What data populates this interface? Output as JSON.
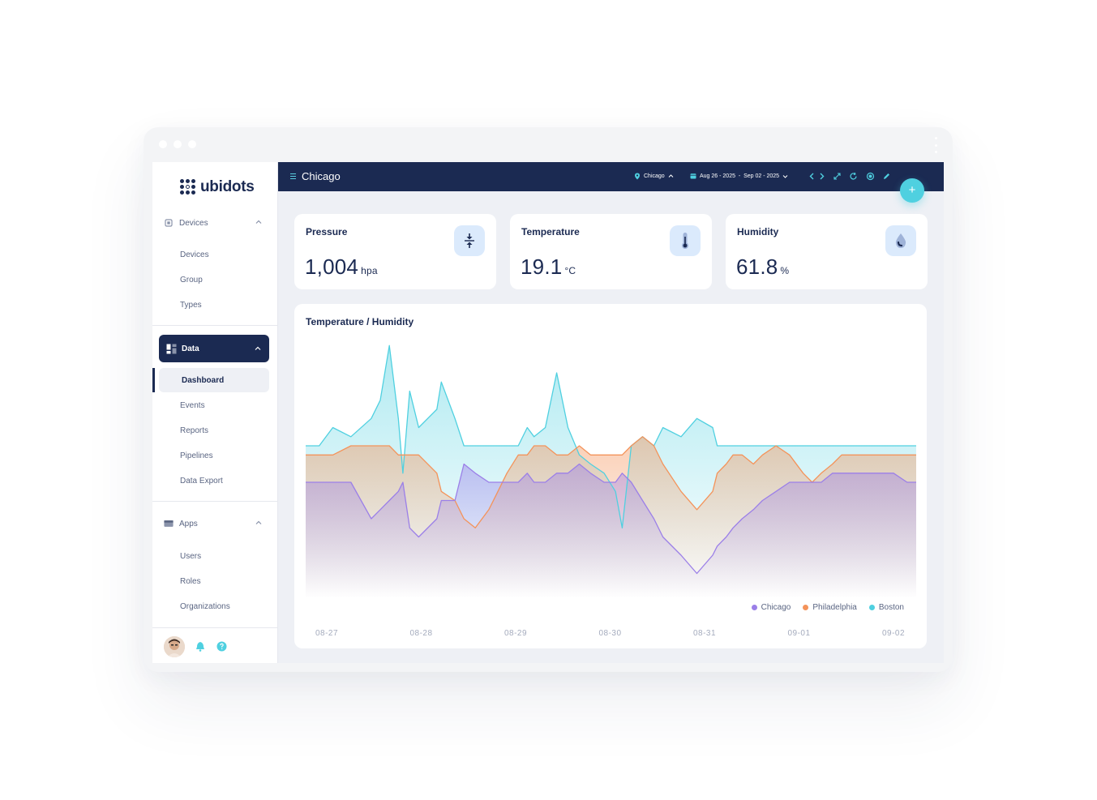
{
  "brand": {
    "name": "ubidots"
  },
  "sidebar": {
    "devices_section": {
      "label": "Devices",
      "items": [
        "Devices",
        "Group",
        "Types"
      ]
    },
    "data_section": {
      "label": "Data",
      "active": "Dashboard",
      "items": [
        "Events",
        "Reports",
        "Pipelines",
        "Data Export"
      ]
    },
    "apps_section": {
      "label": "Apps",
      "items": [
        "Users",
        "Roles",
        "Organizations"
      ]
    }
  },
  "topbar": {
    "title": "Chicago",
    "location": "Chicago",
    "date_range": "Aug 26 - 2025  -  Sep 02 - 2025",
    "fab": "+"
  },
  "kpis": [
    {
      "label": "Pressure",
      "value": "1,004",
      "unit": "hpa",
      "icon": "pressure-icon"
    },
    {
      "label": "Temperature",
      "value": "19.1",
      "unit": "°C",
      "icon": "thermometer-icon"
    },
    {
      "label": "Humidity",
      "value": "61.8",
      "unit": "%",
      "icon": "droplet-icon"
    }
  ],
  "colors": {
    "navy": "#1b2a52",
    "chicago": "#9b7fe8",
    "philadelphia": "#f4935a",
    "boston": "#4fd0e0"
  },
  "chart_data": {
    "type": "area",
    "title": "Temperature / Humidity",
    "xticks": [
      "08-27",
      "08-28",
      "08-29",
      "08-30",
      "08-31",
      "09-01",
      "09-02"
    ],
    "x": [
      0,
      0.3,
      0.6,
      1.0,
      1.45,
      1.65,
      1.85,
      2.05,
      2.15,
      2.3,
      2.5,
      2.9,
      3.0,
      3.3,
      3.5,
      3.75,
      4.05,
      4.25,
      4.45,
      4.7,
      4.9,
      5.05,
      5.3,
      5.55,
      5.8,
      6.05,
      6.3,
      6.6,
      6.85,
      7.0,
      7.2,
      7.45,
      7.7,
      7.9,
      8.3,
      8.65,
      9.0,
      9.1,
      9.3,
      9.45,
      9.65,
      9.9,
      10.1,
      10.4,
      10.7,
      11.0,
      11.2,
      11.4,
      11.65,
      11.85,
      12.3,
      12.7,
      13.0,
      13.3,
      13.5
    ],
    "series": [
      {
        "name": "Chicago",
        "values": [
          32,
          32,
          32,
          32,
          28,
          29,
          30,
          31,
          32,
          27,
          26,
          28,
          30,
          30,
          34,
          33,
          32,
          32,
          32,
          32,
          33,
          32,
          32,
          33,
          33,
          34,
          33,
          32,
          32,
          33,
          32,
          30,
          28,
          26,
          24,
          22,
          24,
          25,
          26,
          27,
          28,
          29,
          30,
          31,
          32,
          32,
          32,
          32,
          33,
          33,
          33,
          33,
          33,
          32,
          32
        ]
      },
      {
        "name": "Philadelphia",
        "values": [
          35,
          35,
          35,
          36,
          36,
          36,
          36,
          35,
          35,
          35,
          35,
          33,
          31,
          30,
          28,
          27,
          29,
          31,
          33,
          35,
          35,
          36,
          36,
          35,
          35,
          36,
          35,
          35,
          35,
          35,
          36,
          37,
          36,
          34,
          31,
          29,
          31,
          33,
          34,
          35,
          35,
          34,
          35,
          36,
          35,
          33,
          32,
          33,
          34,
          35,
          35,
          35,
          35,
          35,
          35
        ]
      },
      {
        "name": "Boston",
        "values": [
          36,
          36,
          38,
          37,
          39,
          41,
          47,
          39,
          33,
          42,
          38,
          40,
          43,
          39,
          36,
          36,
          36,
          36,
          36,
          36,
          38,
          37,
          38,
          44,
          38,
          35,
          34,
          33,
          31,
          27,
          36,
          37,
          36,
          38,
          37,
          39,
          38,
          36,
          36,
          36,
          36,
          36,
          36,
          36,
          36,
          36,
          36,
          36,
          36,
          36,
          36,
          36,
          36,
          36,
          36
        ]
      }
    ],
    "legend": [
      "Chicago",
      "Philadelphia",
      "Boston"
    ],
    "legend_position": "bottom-right",
    "grid": false
  }
}
